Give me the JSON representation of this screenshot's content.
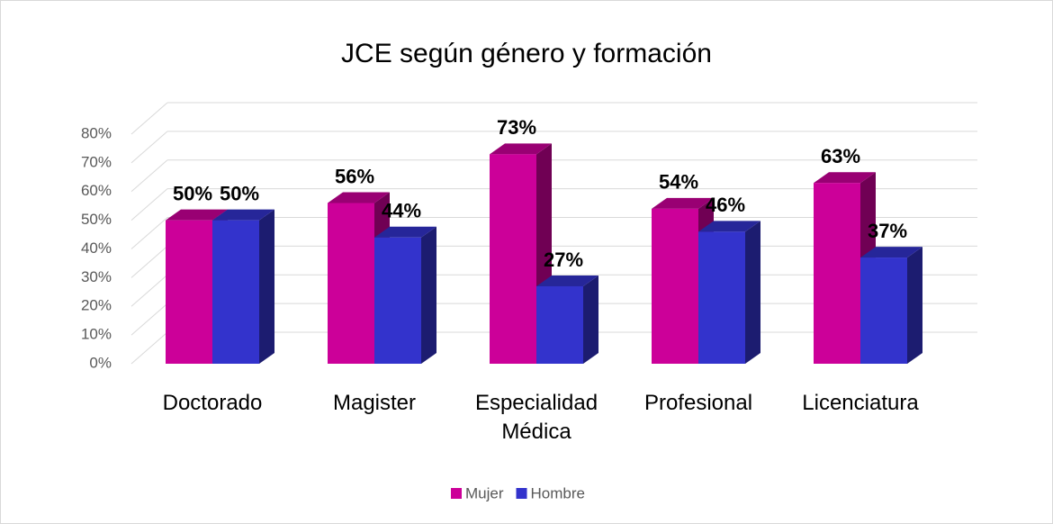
{
  "chart_data": {
    "type": "bar3d",
    "title": "JCE según género y formación",
    "categories": [
      "Doctorado",
      "Magister",
      "Especialidad Médica",
      "Profesional",
      "Licenciatura"
    ],
    "series": [
      {
        "name": "Mujer",
        "color": "#cc0099",
        "values": [
          50,
          56,
          73,
          54,
          63
        ],
        "value_labels": [
          "50%",
          "56%",
          "73%",
          "54%",
          "63%"
        ]
      },
      {
        "name": "Hombre",
        "color": "#3333cc",
        "values": [
          50,
          44,
          27,
          46,
          37
        ],
        "value_labels": [
          "50%",
          "44%",
          "27%",
          "46%",
          "37%"
        ]
      }
    ],
    "ylim": [
      0,
      80
    ],
    "yticks": [
      {
        "value": 0,
        "label": "0%"
      },
      {
        "value": 10,
        "label": "10%"
      },
      {
        "value": 20,
        "label": "20%"
      },
      {
        "value": 30,
        "label": "30%"
      },
      {
        "value": 40,
        "label": "40%"
      },
      {
        "value": 50,
        "label": "50%"
      },
      {
        "value": 60,
        "label": "60%"
      },
      {
        "value": 70,
        "label": "70%"
      },
      {
        "value": 80,
        "label": "80%"
      }
    ],
    "grid": true,
    "legend": "bottom"
  }
}
